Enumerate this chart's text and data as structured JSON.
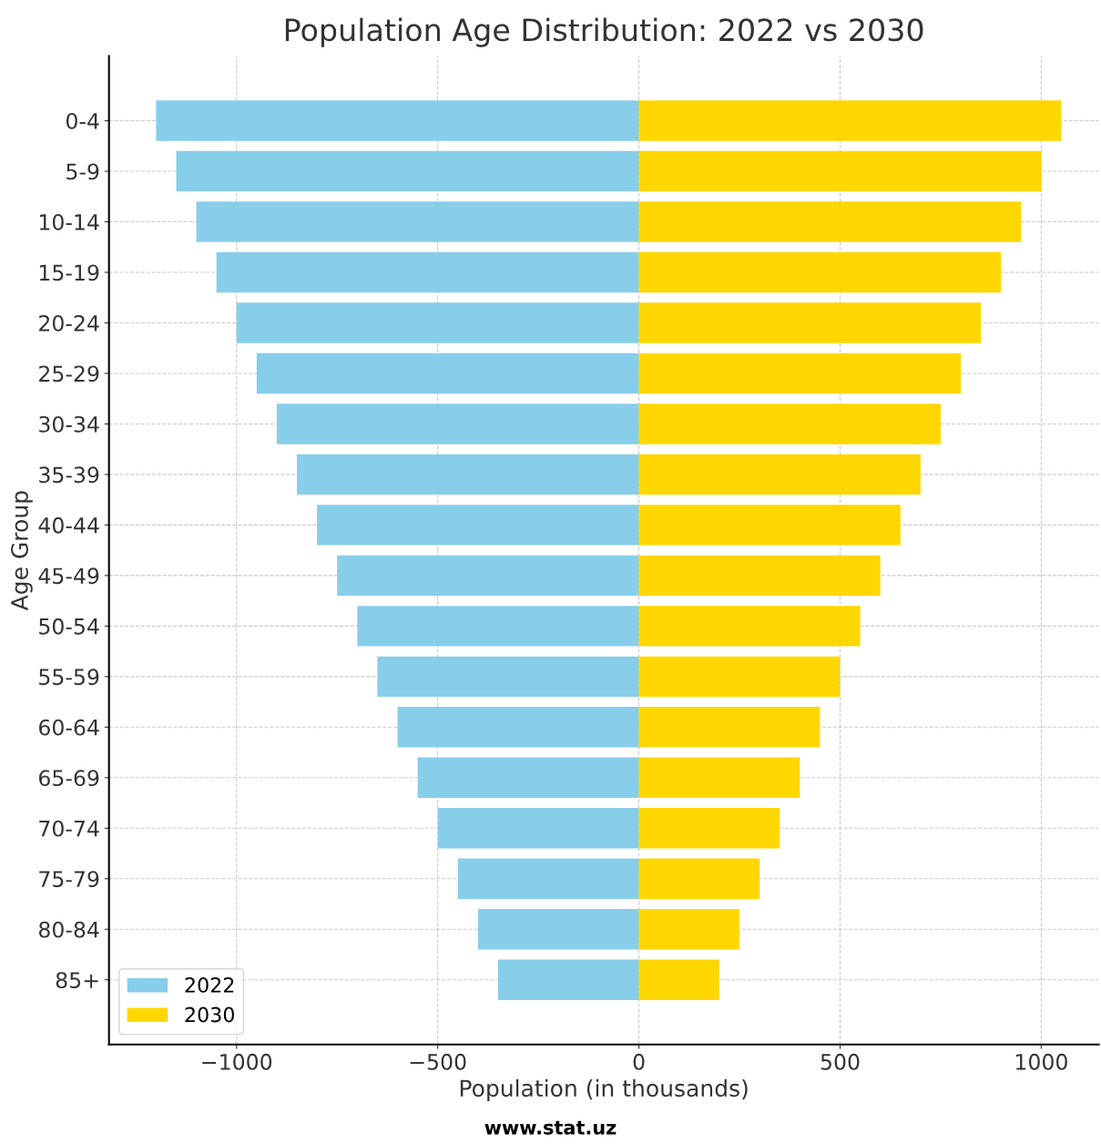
{
  "chart_data": {
    "type": "bar",
    "orientation": "horizontal",
    "title": "Population Age Distribution: 2022 vs 2030",
    "xlabel": "Population (in thousands)",
    "ylabel": "Age Group",
    "categories": [
      "0-4",
      "5-9",
      "10-14",
      "15-19",
      "20-24",
      "25-29",
      "30-34",
      "35-39",
      "40-44",
      "45-49",
      "50-54",
      "55-59",
      "60-64",
      "65-69",
      "70-74",
      "75-79",
      "80-84",
      "85+"
    ],
    "series": [
      {
        "name": "2022",
        "color": "#87ceeb",
        "values": [
          -1200,
          -1150,
          -1100,
          -1050,
          -1000,
          -950,
          -900,
          -850,
          -800,
          -750,
          -700,
          -650,
          -600,
          -550,
          -500,
          -450,
          -400,
          -350
        ]
      },
      {
        "name": "2030",
        "color": "#ffd700",
        "values": [
          1050,
          1000,
          950,
          900,
          850,
          800,
          750,
          700,
          650,
          600,
          550,
          500,
          450,
          400,
          350,
          300,
          250,
          200
        ]
      }
    ],
    "xlim": [
      -1317,
      1143
    ],
    "xticks": [
      {
        "value": -1000,
        "label": "−1000"
      },
      {
        "value": -500,
        "label": "−500"
      },
      0,
      500,
      1000
    ],
    "stacked": true,
    "grid": true,
    "line_style": "dashed",
    "legend": "bottom left",
    "annotations": [
      "www.stat.uz"
    ]
  }
}
